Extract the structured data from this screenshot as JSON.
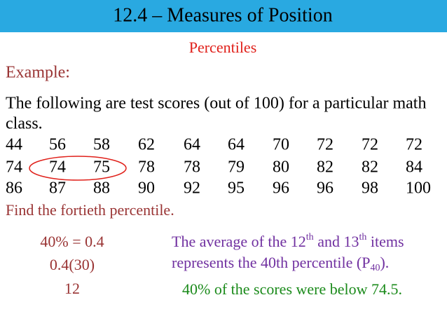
{
  "header": {
    "title": "12.4 – Measures of Position",
    "subtitle": "Percentiles"
  },
  "example_label": "Example:",
  "intro": [
    "The following are test scores (out of 100) for a particular math",
    "class."
  ],
  "scores": [
    [
      44,
      56,
      58,
      62,
      64,
      64,
      70,
      72,
      72,
      72
    ],
    [
      74,
      74,
      75,
      78,
      78,
      79,
      80,
      82,
      82,
      84
    ],
    [
      86,
      87,
      88,
      90,
      92,
      95,
      96,
      96,
      98,
      100
    ]
  ],
  "prompt": "Find the fortieth percentile.",
  "steps": [
    "40% = 0.4",
    "0.4(30)",
    "12"
  ],
  "explanation": {
    "line1": [
      "The average of the 12",
      "th",
      " and 13",
      "th",
      " items"
    ],
    "line2": [
      "represents the 40th percentile (P",
      "40",
      ")."
    ]
  },
  "conclusion": "40% of the scores were below 74.5."
}
